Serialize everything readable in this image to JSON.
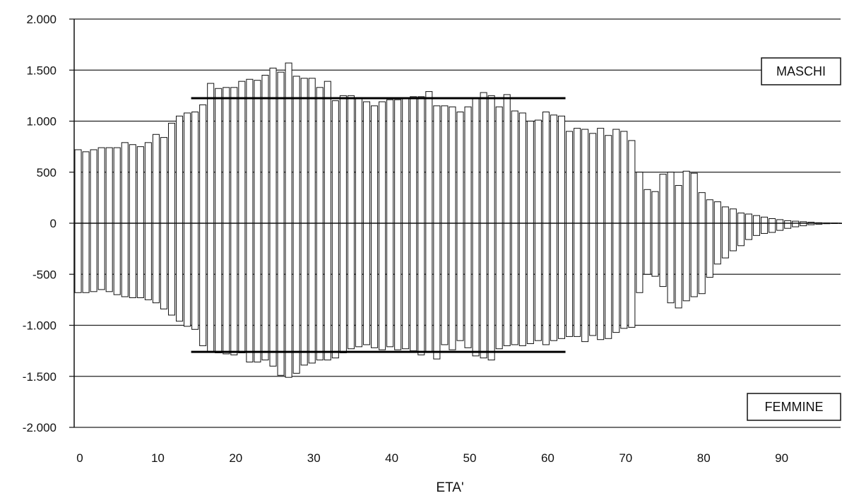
{
  "chart_data": {
    "type": "bar",
    "xlabel": "ETA'",
    "ylabel": "",
    "ylim": [
      -2000,
      2000
    ],
    "xlim": [
      0,
      100
    ],
    "y_ticks": [
      {
        "value": 2000,
        "label": "2.000"
      },
      {
        "value": 1500,
        "label": "1.500"
      },
      {
        "value": 1000,
        "label": "1.000"
      },
      {
        "value": 500,
        "label": "500"
      },
      {
        "value": 0,
        "label": "0"
      },
      {
        "value": -500,
        "label": "-500"
      },
      {
        "value": -1000,
        "label": "-1.000"
      },
      {
        "value": -1500,
        "label": "-1.500"
      },
      {
        "value": -2000,
        "label": "-2.000"
      }
    ],
    "x_ticks": [
      {
        "value": 0,
        "label": "0"
      },
      {
        "value": 10,
        "label": "10"
      },
      {
        "value": 20,
        "label": "20"
      },
      {
        "value": 30,
        "label": "30"
      },
      {
        "value": 40,
        "label": "40"
      },
      {
        "value": 50,
        "label": "50"
      },
      {
        "value": 60,
        "label": "60"
      },
      {
        "value": 70,
        "label": "70"
      },
      {
        "value": 80,
        "label": "80"
      },
      {
        "value": 90,
        "label": "90"
      }
    ],
    "grid": true,
    "legend_position": "right",
    "x": [
      0,
      1,
      2,
      3,
      4,
      5,
      6,
      7,
      8,
      9,
      10,
      11,
      12,
      13,
      14,
      15,
      16,
      17,
      18,
      19,
      20,
      21,
      22,
      23,
      24,
      25,
      26,
      27,
      28,
      29,
      30,
      31,
      32,
      33,
      34,
      35,
      36,
      37,
      38,
      39,
      40,
      41,
      42,
      43,
      44,
      45,
      46,
      47,
      48,
      49,
      50,
      51,
      52,
      53,
      54,
      55,
      56,
      57,
      58,
      59,
      60,
      61,
      62,
      63,
      64,
      65,
      66,
      67,
      68,
      69,
      70,
      71,
      72,
      73,
      74,
      75,
      76,
      77,
      78,
      79,
      80,
      81,
      82,
      83,
      84,
      85,
      86,
      87,
      88,
      89,
      90,
      91,
      92,
      93,
      94,
      95,
      96,
      97,
      98
    ],
    "series": [
      {
        "name": "MASCHI",
        "color": "#ffffff",
        "values": [
          720,
          700,
          720,
          740,
          740,
          740,
          790,
          770,
          750,
          790,
          870,
          840,
          980,
          1050,
          1080,
          1090,
          1160,
          1370,
          1320,
          1330,
          1330,
          1390,
          1410,
          1400,
          1450,
          1520,
          1480,
          1570,
          1440,
          1420,
          1420,
          1330,
          1390,
          1200,
          1250,
          1250,
          1230,
          1190,
          1150,
          1190,
          1210,
          1210,
          1220,
          1240,
          1240,
          1290,
          1150,
          1150,
          1140,
          1090,
          1140,
          1220,
          1280,
          1250,
          1140,
          1260,
          1100,
          1080,
          1000,
          1010,
          1090,
          1060,
          1050,
          900,
          930,
          920,
          880,
          930,
          860,
          920,
          900,
          810,
          500,
          330,
          310,
          480,
          500,
          370,
          510,
          490,
          300,
          230,
          210,
          160,
          140,
          100,
          90,
          75,
          60,
          45,
          35,
          25,
          20,
          15,
          10,
          5,
          3,
          2,
          1
        ]
      },
      {
        "name": "FEMMINE",
        "color": "#ffffff",
        "values": [
          -680,
          -680,
          -670,
          -650,
          -670,
          -700,
          -720,
          -730,
          -730,
          -750,
          -780,
          -840,
          -900,
          -960,
          -1010,
          -1040,
          -1200,
          -1260,
          -1270,
          -1280,
          -1290,
          -1270,
          -1360,
          -1360,
          -1340,
          -1400,
          -1490,
          -1510,
          -1470,
          -1390,
          -1370,
          -1340,
          -1340,
          -1320,
          -1270,
          -1230,
          -1210,
          -1190,
          -1220,
          -1240,
          -1210,
          -1240,
          -1230,
          -1250,
          -1290,
          -1260,
          -1330,
          -1190,
          -1240,
          -1150,
          -1220,
          -1300,
          -1320,
          -1340,
          -1230,
          -1200,
          -1190,
          -1200,
          -1180,
          -1150,
          -1190,
          -1150,
          -1130,
          -1110,
          -1110,
          -1160,
          -1100,
          -1140,
          -1130,
          -1070,
          -1030,
          -1020,
          -680,
          -500,
          -520,
          -620,
          -780,
          -830,
          -760,
          -720,
          -690,
          -530,
          -400,
          -340,
          -270,
          -220,
          -160,
          -120,
          -100,
          -90,
          -70,
          -50,
          -35,
          -25,
          -15,
          -10,
          -5,
          -3,
          -2
        ]
      }
    ],
    "reference_lines": [
      {
        "y": 1225,
        "x_start": 15,
        "x_end": 63
      },
      {
        "y": -1260,
        "x_start": 15,
        "x_end": 63
      }
    ]
  }
}
